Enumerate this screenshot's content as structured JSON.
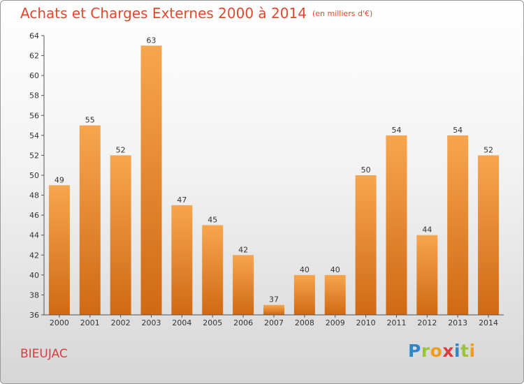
{
  "colors": {
    "title": "#e0482e",
    "bar_light": "#f7a64e",
    "bar_dark": "#d06914",
    "commune": "#e03a3e"
  },
  "chart_data": {
    "type": "bar",
    "title": "Achats et Charges Externes 2000 à 2014",
    "subtitle": "(en milliers d'€)",
    "xlabel": "",
    "ylabel": "",
    "categories": [
      "2000",
      "2001",
      "2002",
      "2003",
      "2004",
      "2005",
      "2006",
      "2007",
      "2008",
      "2009",
      "2010",
      "2011",
      "2012",
      "2013",
      "2014"
    ],
    "values": [
      49,
      55,
      52,
      63,
      47,
      45,
      42,
      37,
      40,
      40,
      50,
      54,
      44,
      54,
      52
    ],
    "ylim": [
      36,
      64
    ],
    "yticks": [
      36,
      38,
      40,
      42,
      44,
      46,
      48,
      50,
      52,
      54,
      56,
      58,
      60,
      62,
      64
    ],
    "grid": false,
    "legend": "none"
  },
  "footer": {
    "commune": "BIEUJAC",
    "brand": "Proxiti",
    "brand_letters": [
      {
        "ch": "P",
        "color": "#2e86c8"
      },
      {
        "ch": "r",
        "color": "#9bc33b"
      },
      {
        "ch": "o",
        "color": "#f09c20"
      },
      {
        "ch": "x",
        "color": "#e03a3e"
      },
      {
        "ch": "i",
        "color": "#2e86c8"
      },
      {
        "ch": "t",
        "color": "#9bc33b"
      },
      {
        "ch": "i",
        "color": "#f09c20"
      }
    ]
  }
}
